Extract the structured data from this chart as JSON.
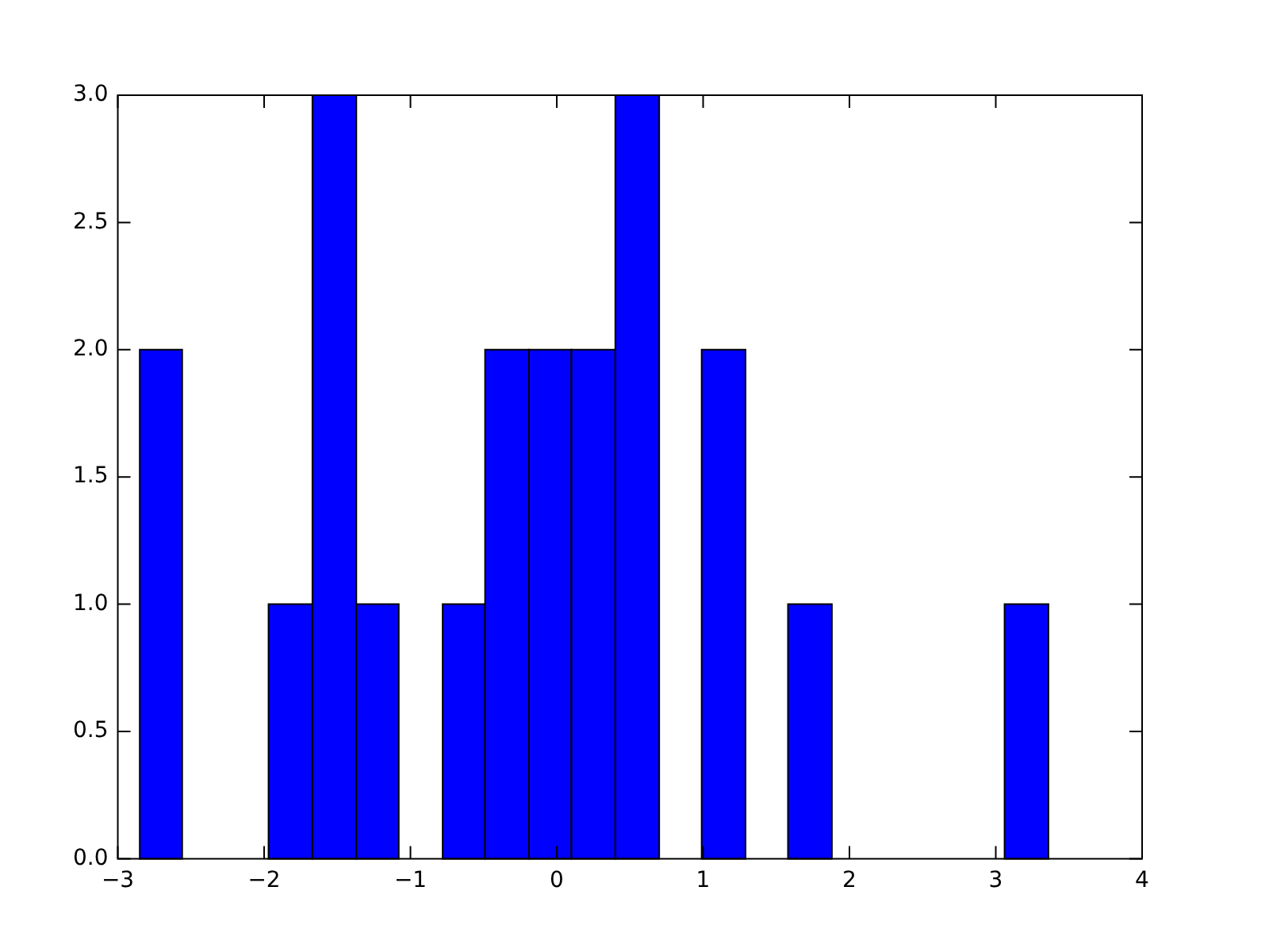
{
  "chart_data": {
    "type": "histogram",
    "bins": [
      -2.85,
      -2.56,
      -1.97,
      -1.67,
      -1.37,
      -1.08,
      -0.78,
      -0.49,
      -0.19,
      0.1,
      0.4,
      0.7,
      0.99,
      1.29,
      1.58,
      1.88,
      3.06,
      3.36
    ],
    "values": [
      2,
      0,
      1,
      3,
      1,
      0,
      1,
      2,
      2,
      2,
      3,
      0,
      2,
      0,
      1,
      0,
      1
    ],
    "color": "#0000ff",
    "xlim": [
      -3,
      4
    ],
    "xticks": [
      {
        "value": -3,
        "label": "−3"
      },
      {
        "value": -2,
        "label": "−2"
      },
      {
        "value": -1,
        "label": "−1"
      },
      0,
      1,
      2,
      3,
      4
    ],
    "ylim": [
      0,
      3
    ],
    "yticks": [
      {
        "value": 0,
        "label": "0.0"
      },
      {
        "value": 0.5,
        "label": "0.5"
      },
      {
        "value": 1,
        "label": "1.0"
      },
      {
        "value": 1.5,
        "label": "1.5"
      },
      {
        "value": 2,
        "label": "2.0"
      },
      {
        "value": 2.5,
        "label": "2.5"
      },
      {
        "value": 3,
        "label": "3.0"
      }
    ],
    "grid": false,
    "legend": false
  }
}
